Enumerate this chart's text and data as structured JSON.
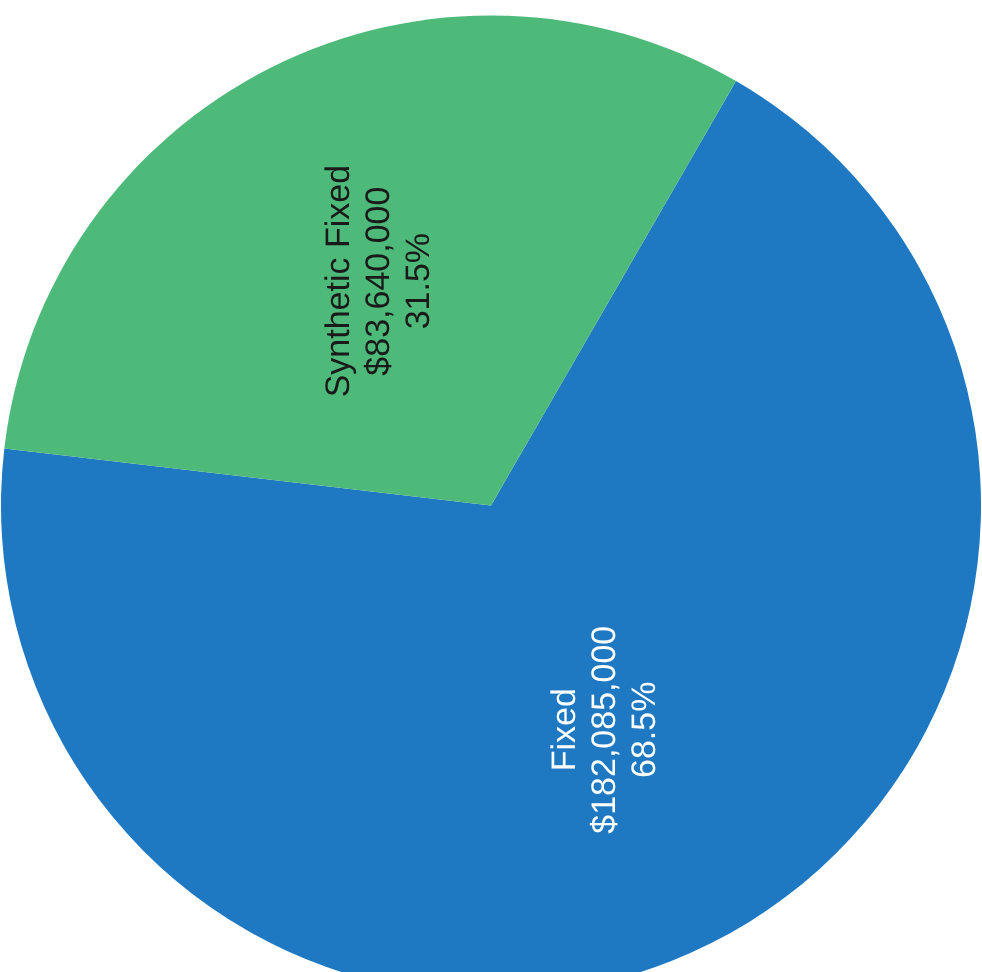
{
  "chart_data": {
    "type": "pie",
    "categories": [
      "Fixed",
      "Synthetic Fixed"
    ],
    "values": [
      182085000,
      83640000
    ],
    "colors": [
      "#1e78c2",
      "#4dba7a"
    ],
    "value_labels": [
      "$182,085,000\n68.5%",
      "$83,640,000\n31.5%"
    ]
  }
}
